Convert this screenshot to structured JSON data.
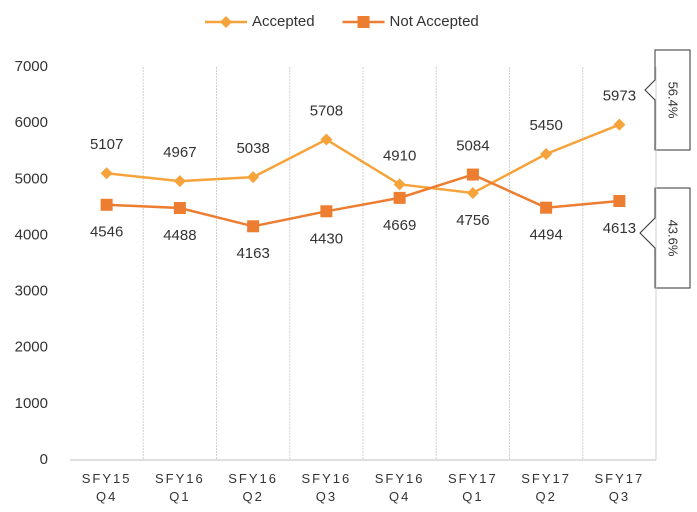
{
  "chart_data": {
    "type": "line",
    "categories": [
      "SFY15\nQ4",
      "SFY16\nQ1",
      "SFY16\nQ2",
      "SFY16\nQ3",
      "SFY16\nQ4",
      "SFY17\nQ1",
      "SFY17\nQ2",
      "SFY17\nQ3"
    ],
    "series": [
      {
        "name": "Accepted",
        "color": "#f5a33a",
        "marker": "diamond",
        "values": [
          5107,
          4967,
          5038,
          5708,
          4910,
          4756,
          5450,
          5973
        ]
      },
      {
        "name": "Not Accepted",
        "color": "#ed7d31",
        "marker": "square",
        "values": [
          4546,
          4488,
          4163,
          4430,
          4669,
          5084,
          4494,
          4613
        ]
      }
    ],
    "ylim": [
      0,
      7000
    ],
    "yticks": [
      0,
      1000,
      2000,
      3000,
      4000,
      5000,
      6000,
      7000
    ],
    "annotations": [
      "56.4%",
      "43.6%"
    ],
    "legend": "top"
  }
}
